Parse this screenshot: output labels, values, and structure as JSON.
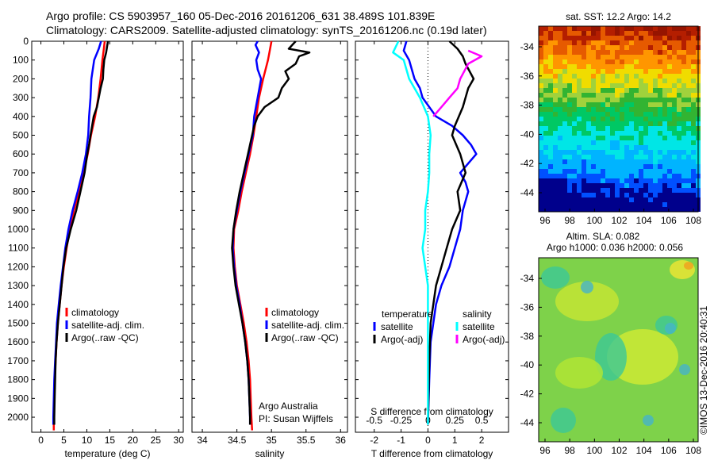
{
  "header": {
    "line1": "Argo profile: CS 5903957_160 05-Dec-2016 20161206_631 38.489S 101.839E",
    "line2": "Climatology: CARS2009. Satellite-adjusted climatology: synTS_20161206.nc (0.19d later)"
  },
  "colors": {
    "climatology": "#ff0000",
    "satellite": "#0000ff",
    "argo": "#000000",
    "satellite_s": "#00ffff",
    "argo_s": "#ff00ff"
  },
  "chart_data": [
    {
      "type": "line",
      "id": "temperature",
      "xlabel": "temperature (deg C)",
      "xlim": [
        -2,
        31
      ],
      "xticks": [
        0,
        5,
        10,
        15,
        20,
        25,
        30
      ],
      "ylim": [
        2080,
        0
      ],
      "yticks": [
        0,
        100,
        200,
        300,
        400,
        500,
        600,
        700,
        800,
        900,
        1000,
        1100,
        1200,
        1300,
        1400,
        1500,
        1600,
        1700,
        1800,
        1900,
        2000
      ],
      "legend": [
        "climatology",
        "satellite-adj. clim.",
        "Argo(..raw -QC)"
      ],
      "series": [
        {
          "name": "climatology",
          "color": "#ff0000",
          "points": [
            [
              13.9,
              0
            ],
            [
              13.7,
              40
            ],
            [
              13.4,
              100
            ],
            [
              13.0,
              200
            ],
            [
              12.5,
              300
            ],
            [
              11.8,
              400
            ],
            [
              10.9,
              500
            ],
            [
              10.2,
              600
            ],
            [
              9.3,
              700
            ],
            [
              8.3,
              800
            ],
            [
              7.2,
              900
            ],
            [
              6.3,
              1000
            ],
            [
              5.6,
              1100
            ],
            [
              5.0,
              1200
            ],
            [
              4.5,
              1300
            ],
            [
              4.1,
              1400
            ],
            [
              3.7,
              1500
            ],
            [
              3.4,
              1600
            ],
            [
              3.2,
              1700
            ],
            [
              3.0,
              1800
            ],
            [
              2.9,
              1900
            ],
            [
              2.8,
              2000
            ],
            [
              2.8,
              2070
            ]
          ]
        },
        {
          "name": "satellite-adj. clim.",
          "color": "#0000ff",
          "points": [
            [
              13.1,
              0
            ],
            [
              12.6,
              40
            ],
            [
              11.6,
              100
            ],
            [
              11.0,
              200
            ],
            [
              10.8,
              300
            ],
            [
              10.5,
              400
            ],
            [
              10.3,
              500
            ],
            [
              9.8,
              600
            ],
            [
              9.0,
              700
            ],
            [
              8.0,
              800
            ],
            [
              6.9,
              900
            ],
            [
              6.0,
              1000
            ],
            [
              5.3,
              1100
            ],
            [
              4.8,
              1200
            ],
            [
              4.3,
              1300
            ],
            [
              3.9,
              1400
            ],
            [
              3.5,
              1500
            ],
            [
              3.3,
              1600
            ],
            [
              3.1,
              1700
            ],
            [
              2.9,
              1800
            ],
            [
              2.8,
              1900
            ],
            [
              2.7,
              2000
            ],
            [
              2.7,
              2040
            ]
          ]
        },
        {
          "name": "Argo(..raw -QC)",
          "color": "#000000",
          "points": [
            [
              14.6,
              0
            ],
            [
              14.4,
              30
            ],
            [
              14.2,
              60
            ],
            [
              13.8,
              100
            ],
            [
              13.6,
              150
            ],
            [
              13.5,
              200
            ],
            [
              13.0,
              250
            ],
            [
              12.6,
              300
            ],
            [
              12.2,
              350
            ],
            [
              11.5,
              400
            ],
            [
              10.8,
              500
            ],
            [
              10.5,
              550
            ],
            [
              10.1,
              600
            ],
            [
              9.5,
              700
            ],
            [
              8.6,
              800
            ],
            [
              7.7,
              900
            ],
            [
              6.5,
              1000
            ],
            [
              5.5,
              1100
            ],
            [
              4.9,
              1200
            ],
            [
              4.5,
              1300
            ],
            [
              4.1,
              1400
            ],
            [
              3.7,
              1500
            ],
            [
              3.4,
              1600
            ],
            [
              3.2,
              1700
            ],
            [
              3.1,
              1800
            ],
            [
              3.0,
              1900
            ],
            [
              2.9,
              2000
            ],
            [
              2.9,
              2040
            ]
          ]
        }
      ]
    },
    {
      "type": "line",
      "id": "salinity",
      "xlabel": "salinity",
      "xlim": [
        33.85,
        36.1
      ],
      "xticks": [
        34,
        34.5,
        35,
        35.5,
        36
      ],
      "xticklabels": [
        "34",
        "34.5",
        "35",
        "35.5",
        "36"
      ],
      "ylim": [
        2080,
        0
      ],
      "legend": [
        "climatology",
        "satellite-adj. clim.",
        "Argo(..raw -QC)"
      ],
      "annotation": [
        "Argo Australia",
        "PI: Susan Wijffels"
      ],
      "series": [
        {
          "name": "climatology",
          "color": "#ff0000",
          "points": [
            [
              35.0,
              0
            ],
            [
              34.97,
              60
            ],
            [
              34.95,
              100
            ],
            [
              34.88,
              200
            ],
            [
              34.82,
              300
            ],
            [
              34.78,
              400
            ],
            [
              34.74,
              500
            ],
            [
              34.69,
              600
            ],
            [
              34.63,
              700
            ],
            [
              34.57,
              800
            ],
            [
              34.52,
              900
            ],
            [
              34.46,
              1000
            ],
            [
              34.45,
              1100
            ],
            [
              34.47,
              1200
            ],
            [
              34.5,
              1300
            ],
            [
              34.55,
              1400
            ],
            [
              34.6,
              1500
            ],
            [
              34.64,
              1600
            ],
            [
              34.67,
              1700
            ],
            [
              34.69,
              1800
            ],
            [
              34.7,
              1900
            ],
            [
              34.71,
              2000
            ],
            [
              34.72,
              2070
            ]
          ]
        },
        {
          "name": "satellite-adj. clim.",
          "color": "#0000ff",
          "points": [
            [
              34.8,
              0
            ],
            [
              34.77,
              20
            ],
            [
              34.82,
              60
            ],
            [
              34.78,
              100
            ],
            [
              34.8,
              150
            ],
            [
              34.85,
              200
            ],
            [
              34.8,
              300
            ],
            [
              34.75,
              400
            ],
            [
              34.73,
              500
            ],
            [
              34.67,
              600
            ],
            [
              34.61,
              700
            ],
            [
              34.55,
              800
            ],
            [
              34.5,
              900
            ],
            [
              34.45,
              1000
            ],
            [
              34.44,
              1100
            ],
            [
              34.46,
              1200
            ],
            [
              34.49,
              1300
            ],
            [
              34.54,
              1400
            ],
            [
              34.58,
              1500
            ],
            [
              34.62,
              1600
            ],
            [
              34.65,
              1700
            ],
            [
              34.67,
              1800
            ],
            [
              34.68,
              1900
            ],
            [
              34.69,
              2000
            ],
            [
              34.69,
              2040
            ]
          ]
        },
        {
          "name": "Argo(..raw -QC)",
          "color": "#000000",
          "points": [
            [
              35.35,
              0
            ],
            [
              35.25,
              40
            ],
            [
              35.55,
              60
            ],
            [
              35.4,
              80
            ],
            [
              35.35,
              120
            ],
            [
              35.2,
              160
            ],
            [
              35.25,
              200
            ],
            [
              35.15,
              250
            ],
            [
              35.1,
              300
            ],
            [
              34.9,
              350
            ],
            [
              34.8,
              400
            ],
            [
              34.75,
              450
            ],
            [
              34.72,
              500
            ],
            [
              34.66,
              600
            ],
            [
              34.6,
              700
            ],
            [
              34.54,
              800
            ],
            [
              34.49,
              900
            ],
            [
              34.45,
              1000
            ],
            [
              34.43,
              1100
            ],
            [
              34.45,
              1200
            ],
            [
              34.48,
              1300
            ],
            [
              34.53,
              1400
            ],
            [
              34.58,
              1500
            ],
            [
              34.62,
              1600
            ],
            [
              34.65,
              1700
            ],
            [
              34.67,
              1800
            ],
            [
              34.68,
              1900
            ],
            [
              34.69,
              2000
            ],
            [
              34.69,
              2040
            ]
          ]
        }
      ]
    },
    {
      "type": "line",
      "id": "difference",
      "xlabel": "T difference from climatology",
      "xlabel2": "S difference from climatology",
      "xlim": [
        -2.7,
        3.0
      ],
      "xticks": [
        -2,
        -1,
        0,
        1,
        2
      ],
      "xticks2": [
        -0.5,
        -0.25,
        0,
        0.25,
        0.5
      ],
      "xticklabels2": [
        "-0.5",
        "-0.25",
        "0",
        "0.25",
        "0.5"
      ],
      "ylim": [
        2080,
        0
      ],
      "legend_temperature": [
        "temperature",
        "satellite",
        "Argo(-adj)"
      ],
      "legend_salinity": [
        "salinity",
        "satellite",
        "Argo(-adj)"
      ],
      "series": [
        {
          "name": "temperature satellite",
          "color": "#0000ff",
          "points": [
            [
              -0.8,
              0
            ],
            [
              -0.9,
              50
            ],
            [
              -0.7,
              100
            ],
            [
              -0.6,
              150
            ],
            [
              -0.5,
              200
            ],
            [
              -0.3,
              250
            ],
            [
              -0.2,
              300
            ],
            [
              0.3,
              400
            ],
            [
              0.9,
              450
            ],
            [
              1.3,
              500
            ],
            [
              1.6,
              550
            ],
            [
              1.8,
              600
            ],
            [
              1.5,
              650
            ],
            [
              1.2,
              700
            ],
            [
              1.4,
              750
            ],
            [
              1.5,
              800
            ],
            [
              1.3,
              900
            ],
            [
              1.2,
              1000
            ],
            [
              1.0,
              1100
            ],
            [
              0.8,
              1200
            ],
            [
              0.5,
              1300
            ],
            [
              0.3,
              1400
            ],
            [
              0.2,
              1500
            ],
            [
              0.1,
              1600
            ],
            [
              0.05,
              1800
            ],
            [
              0,
              2040
            ]
          ]
        },
        {
          "name": "temperature Argo(-adj)",
          "color": "#000000",
          "points": [
            [
              0.8,
              0
            ],
            [
              1.1,
              40
            ],
            [
              1.3,
              80
            ],
            [
              1.4,
              120
            ],
            [
              1.7,
              200
            ],
            [
              1.5,
              250
            ],
            [
              1.3,
              350
            ],
            [
              1.0,
              450
            ],
            [
              0.9,
              500
            ],
            [
              1.2,
              600
            ],
            [
              1.4,
              700
            ],
            [
              1.1,
              800
            ],
            [
              1.2,
              900
            ],
            [
              0.9,
              1000
            ],
            [
              0.7,
              1100
            ],
            [
              0.5,
              1200
            ],
            [
              0.3,
              1300
            ],
            [
              0.2,
              1400
            ],
            [
              0.1,
              1500
            ],
            [
              0.05,
              1700
            ],
            [
              0,
              2040
            ]
          ]
        },
        {
          "name": "salinity satellite",
          "color": "#00ffff",
          "points": [
            [
              -1.1,
              0
            ],
            [
              -1.3,
              60
            ],
            [
              -0.9,
              100
            ],
            [
              -0.7,
              200
            ],
            [
              -0.3,
              300
            ],
            [
              0,
              400
            ],
            [
              0.1,
              500
            ],
            [
              0.05,
              600
            ],
            [
              0.05,
              700
            ],
            [
              0,
              800
            ],
            [
              -0.1,
              900
            ],
            [
              -0.1,
              1000
            ],
            [
              -0.2,
              1100
            ],
            [
              -0.1,
              1200
            ],
            [
              0,
              1300
            ],
            [
              0,
              1500
            ],
            [
              0,
              2040
            ]
          ]
        },
        {
          "name": "salinity Argo(-adj)",
          "color": "#ff00ff",
          "points": [
            [
              1.5,
              50
            ],
            [
              2.0,
              80
            ],
            [
              1.5,
              120
            ],
            [
              1.2,
              200
            ],
            [
              1.1,
              250
            ],
            [
              0.8,
              300
            ],
            [
              0.5,
              350
            ],
            [
              0.2,
              400
            ]
          ]
        }
      ]
    }
  ],
  "sst_map": {
    "title": "sat. SST: 12.2 Argo: 14.2",
    "xticks": [
      "96",
      "98",
      "100",
      "102",
      "104",
      "106",
      "108"
    ],
    "yticks": [
      "-34",
      "-36",
      "-38",
      "-40",
      "-42",
      "-44"
    ]
  },
  "sla_map": {
    "title1": "Altim. SLA: 0.082",
    "title2": "Argo h1000: 0.036 h2000: 0.056",
    "xticks": [
      "96",
      "98",
      "100",
      "102",
      "104",
      "106",
      "108"
    ],
    "yticks": [
      "-34",
      "-36",
      "-38",
      "-40",
      "-42",
      "-44"
    ]
  },
  "footer": {
    "credit": "©IMOS 13-Dec-2016 20:40:31"
  }
}
